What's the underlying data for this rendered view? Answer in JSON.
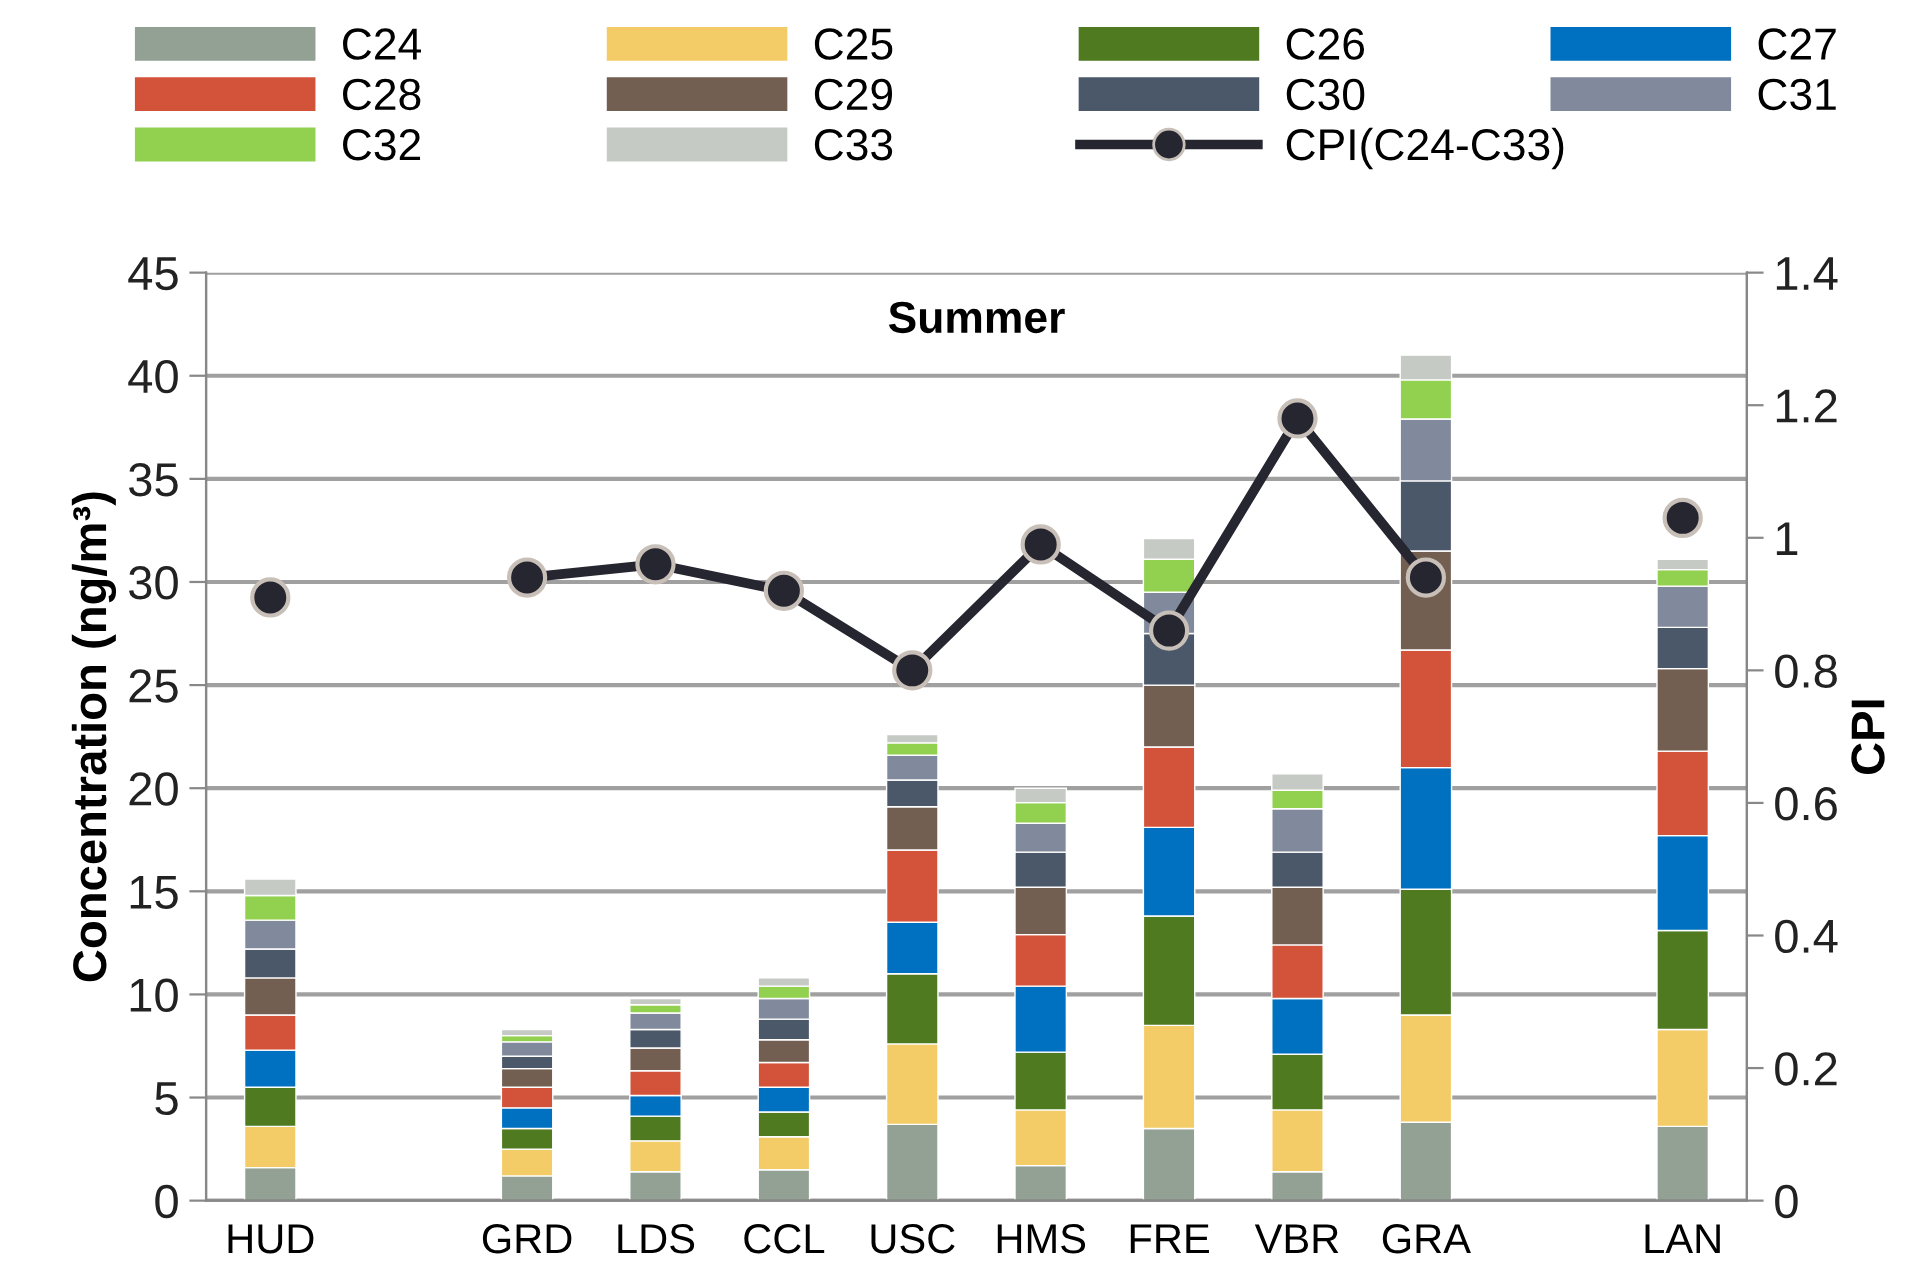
{
  "chart_data": {
    "type": "bar",
    "stacked": true,
    "title": "Summer",
    "ylabel": "Concentration (ng/m³)",
    "y2label": "CPI",
    "categories": [
      "HUD",
      null,
      "GRD",
      "LDS",
      "CCL",
      "USC",
      "HMS",
      "FRE",
      "VBR",
      "GRA",
      null,
      "LAN"
    ],
    "series": [
      {
        "name": "C24",
        "color": "#93a194",
        "values": [
          1.6,
          null,
          1.2,
          1.4,
          1.5,
          3.7,
          1.7,
          3.5,
          1.4,
          3.8,
          null,
          3.6
        ]
      },
      {
        "name": "C25",
        "color": "#f3cb67",
        "values": [
          2.0,
          null,
          1.3,
          1.5,
          1.6,
          3.9,
          2.7,
          5.0,
          3.0,
          5.2,
          null,
          4.7
        ]
      },
      {
        "name": "C26",
        "color": "#507a20",
        "values": [
          1.9,
          null,
          1.0,
          1.2,
          1.2,
          3.4,
          2.8,
          5.3,
          2.7,
          6.1,
          null,
          4.8
        ]
      },
      {
        "name": "C27",
        "color": "#0070c0",
        "values": [
          1.8,
          null,
          1.0,
          1.0,
          1.2,
          2.5,
          3.2,
          4.3,
          2.7,
          5.9,
          null,
          4.6
        ]
      },
      {
        "name": "C28",
        "color": "#d2533a",
        "values": [
          1.7,
          null,
          1.0,
          1.2,
          1.2,
          3.5,
          2.5,
          3.9,
          2.6,
          5.7,
          null,
          4.1
        ]
      },
      {
        "name": "C29",
        "color": "#735f52",
        "values": [
          1.8,
          null,
          0.9,
          1.1,
          1.1,
          2.1,
          2.3,
          3.0,
          2.8,
          4.8,
          null,
          4.0
        ]
      },
      {
        "name": "C30",
        "color": "#4a5869",
        "values": [
          1.4,
          null,
          0.6,
          0.9,
          1.0,
          1.3,
          1.7,
          2.5,
          1.7,
          3.4,
          null,
          2.0
        ]
      },
      {
        "name": "C31",
        "color": "#808a9c",
        "values": [
          1.4,
          null,
          0.7,
          0.8,
          1.0,
          1.2,
          1.4,
          2.0,
          2.1,
          3.0,
          null,
          2.0
        ]
      },
      {
        "name": "C32",
        "color": "#92d050",
        "values": [
          1.2,
          null,
          0.3,
          0.4,
          0.6,
          0.6,
          1.0,
          1.6,
          0.9,
          1.9,
          null,
          0.8
        ]
      },
      {
        "name": "C33",
        "color": "#c5cac5",
        "values": [
          0.8,
          null,
          0.3,
          0.3,
          0.4,
          0.4,
          0.7,
          1.0,
          0.8,
          1.2,
          null,
          0.5
        ]
      },
      {
        "name": "CPI(C24-C33)",
        "type": "line",
        "axis": "y2",
        "color": "#262630",
        "marker": "circle",
        "values": [
          0.91,
          null,
          0.94,
          0.96,
          0.92,
          0.8,
          0.99,
          0.86,
          1.18,
          0.94,
          null,
          1.03
        ]
      }
    ],
    "ylim": [
      0,
      45
    ],
    "yticks": [
      0,
      5,
      10,
      15,
      20,
      25,
      30,
      35,
      40,
      45
    ],
    "y2lim": [
      0,
      1.4
    ],
    "y2ticks": [
      0,
      0.2,
      0.4,
      0.6,
      0.8,
      1,
      1.2,
      1.4
    ],
    "grid": "y",
    "legend": "top"
  }
}
